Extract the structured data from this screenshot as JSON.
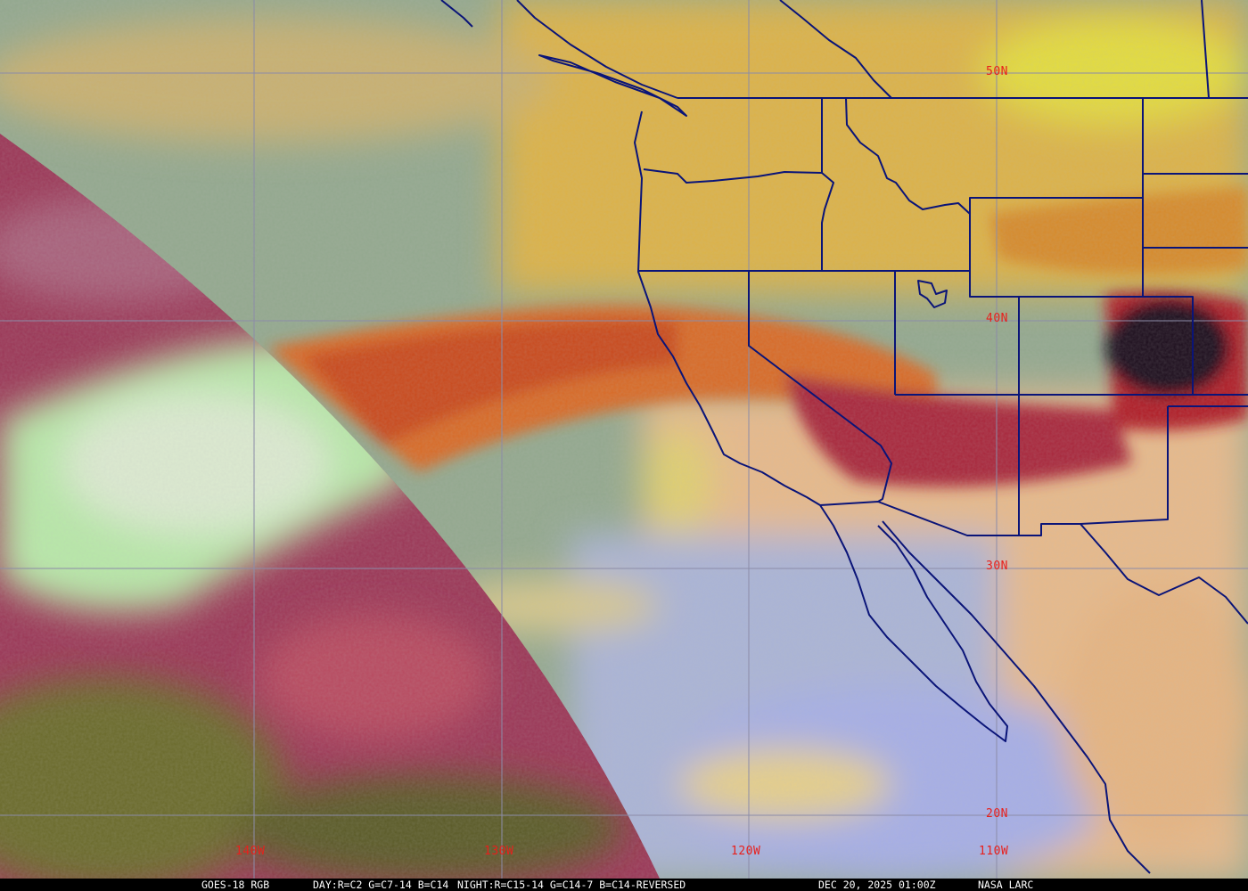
{
  "caption": {
    "product": "GOES-18 RGB",
    "day_recipe": "DAY:R=C2 G=C7-14 B=C14",
    "night_recipe": "NIGHT:R=C15-14 G=C14-7 B=C14-REVERSED",
    "timestamp": "DEC 20, 2025 01:00Z",
    "source": "NASA LARC"
  },
  "grid_labels": {
    "lat": [
      "50N",
      "40N",
      "30N",
      "20N"
    ],
    "lon": [
      "140W",
      "130W",
      "120W",
      "110W"
    ]
  },
  "colors": {
    "label": "#e8201c",
    "gridline": "#8c8ca8",
    "borders": "#0a1478",
    "ocean_day": "#93a88e",
    "land_day": "#dcb247",
    "night_side": "#9b3656",
    "caption_bg": "#000000",
    "caption_text": "#ffffff"
  }
}
